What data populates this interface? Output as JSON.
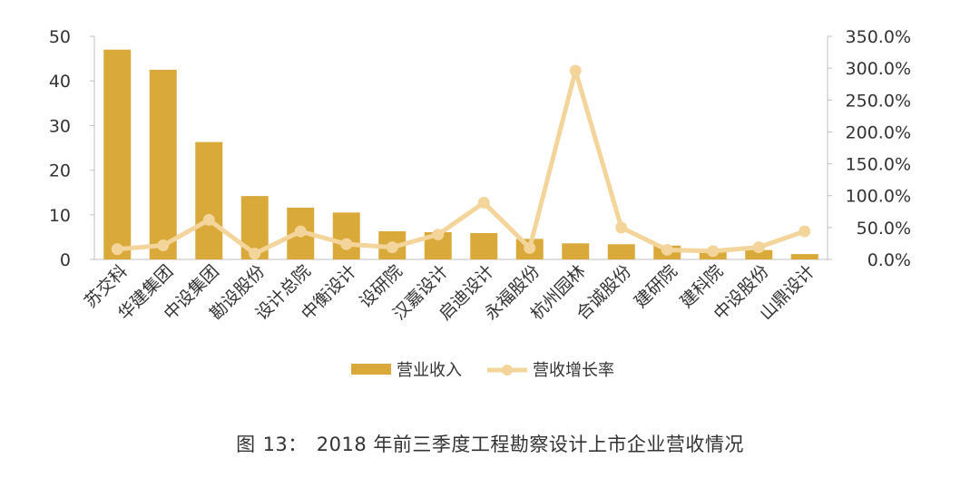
{
  "caption": {
    "prefix": "图",
    "number": "13：",
    "text": "2018 年前三季度工程勘察设计上市企业营收情况"
  },
  "colors": {
    "bar": "#D9AA3A",
    "line": "#F3D49A",
    "axis": "#BFBFBF",
    "text": "#333333"
  },
  "chart_data": {
    "type": "bar",
    "categories": [
      "苏交科",
      "华建集团",
      "中设集团",
      "勘设股份",
      "设计总院",
      "中衡设计",
      "设研院",
      "汉嘉设计",
      "启迪设计",
      "永福股份",
      "杭州园林",
      "合诚股份",
      "建研院",
      "建科院",
      "中设股份",
      "山鼎设计"
    ],
    "series": [
      {
        "name": "营业收入",
        "type": "bar",
        "axis": "left",
        "values": [
          47.0,
          42.5,
          26.3,
          14.2,
          11.6,
          10.5,
          6.3,
          6.1,
          5.9,
          4.6,
          3.6,
          3.4,
          3.1,
          2.2,
          2.1,
          1.2
        ]
      },
      {
        "name": "营收增长率",
        "type": "line",
        "axis": "right",
        "values": [
          16,
          22,
          62,
          9,
          44,
          24,
          19,
          39,
          89,
          18,
          296,
          50,
          15,
          13,
          19,
          44
        ]
      }
    ],
    "y_left": {
      "ylim": [
        0,
        50
      ],
      "ticks": [
        "0",
        "10",
        "20",
        "30",
        "40",
        "50"
      ]
    },
    "y_right": {
      "ylim": [
        0,
        350
      ],
      "ticks": [
        "0.0%",
        "50.0%",
        "100.0%",
        "150.0%",
        "200.0%",
        "250.0%",
        "300.0%",
        "350.0%"
      ]
    },
    "grid": false,
    "legend_position": "bottom"
  }
}
